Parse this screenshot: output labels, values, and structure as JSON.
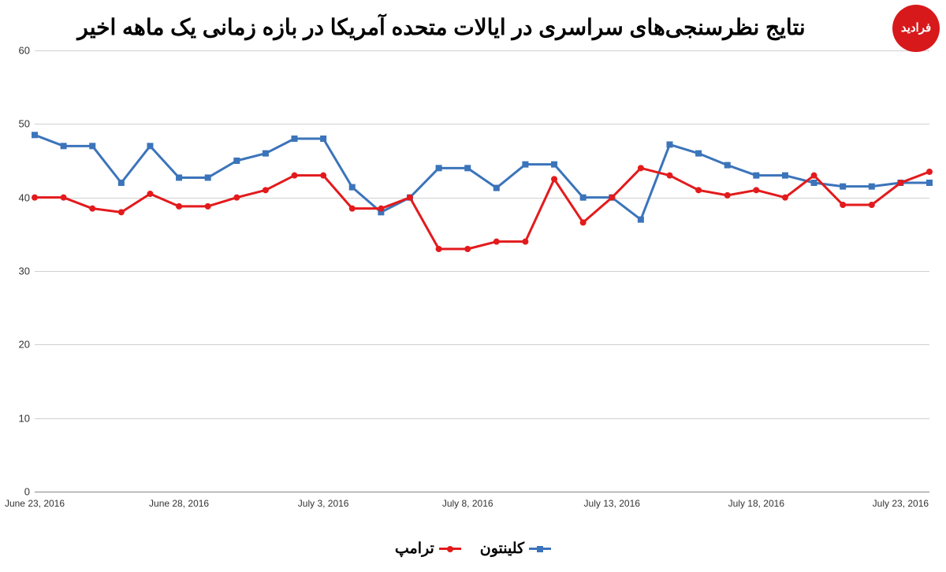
{
  "title": "نتایج نظرسنجی‌های سراسری در ایالات متحده آمریکا در بازه زمانی یک ماهه اخیر",
  "logo_text": "فرادید",
  "chart": {
    "type": "line",
    "background_color": "#ffffff",
    "grid_color": "#d0d0d0",
    "axis_color": "#888888",
    "ylim": [
      0,
      60
    ],
    "ytick_step": 10,
    "yticks": [
      0,
      10,
      20,
      30,
      40,
      50,
      60
    ],
    "x_count": 32,
    "xticks": [
      {
        "i": 0,
        "label": "June 23, 2016"
      },
      {
        "i": 5,
        "label": "June 28, 2016"
      },
      {
        "i": 10,
        "label": "July 3, 2016"
      },
      {
        "i": 15,
        "label": "July 8, 2016"
      },
      {
        "i": 20,
        "label": "July 13, 2016"
      },
      {
        "i": 25,
        "label": "July 18, 2016"
      },
      {
        "i": 30,
        "label": "July 23, 2016"
      }
    ],
    "series": [
      {
        "name": "کلینتون",
        "color": "#3b74ba",
        "marker": "square",
        "line_width": 3,
        "marker_size": 7,
        "values": [
          48.5,
          47,
          47,
          42,
          47,
          42.7,
          42.7,
          45,
          46,
          48,
          48,
          41.4,
          38,
          40,
          44,
          44,
          41.3,
          44.5,
          44.5,
          40,
          40,
          37,
          47.2,
          46,
          44.4,
          43,
          43,
          42,
          41.5,
          41.5,
          42,
          42
        ]
      },
      {
        "name": "ترامپ",
        "color": "#e31a1c",
        "marker": "circle",
        "line_width": 3,
        "marker_size": 7,
        "values": [
          40,
          40,
          38.5,
          38,
          40.5,
          38.8,
          38.8,
          40,
          41,
          43,
          43,
          38.5,
          38.5,
          40,
          33,
          33,
          34,
          34,
          42.5,
          36.6,
          40,
          44,
          43,
          41,
          40.3,
          41,
          40,
          43,
          39,
          39,
          42,
          43.5
        ]
      }
    ]
  },
  "legend": {
    "items": [
      {
        "label": "کلینتون",
        "color": "#3b74ba",
        "marker": "square"
      },
      {
        "label": "ترامپ",
        "color": "#e31a1c",
        "marker": "circle"
      }
    ]
  }
}
